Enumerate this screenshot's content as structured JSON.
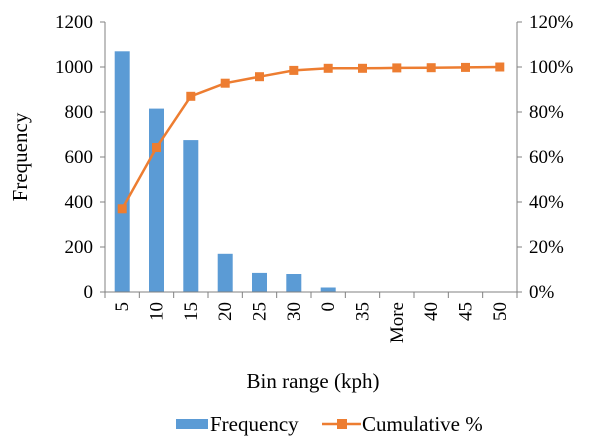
{
  "chart_data": {
    "type": "bar",
    "categories": [
      "5",
      "10",
      "15",
      "20",
      "25",
      "30",
      "0",
      "35",
      "More",
      "40",
      "45",
      "50"
    ],
    "series": [
      {
        "name": "Frequency",
        "type": "bar",
        "axis": "left",
        "color": "#5B9BD5",
        "values": [
          1070,
          815,
          675,
          170,
          85,
          80,
          20,
          0,
          0,
          0,
          0,
          0
        ]
      },
      {
        "name": "Cumulative %",
        "type": "line",
        "axis": "right",
        "color": "#ED7D31",
        "marker": "square",
        "values": [
          37.0,
          64.2,
          87.0,
          92.8,
          95.7,
          98.5,
          99.4,
          99.4,
          99.6,
          99.7,
          99.8,
          100.0
        ]
      }
    ],
    "xlabel": "Bin range (kph)",
    "ylabel": "Frequency",
    "ylim": [
      0,
      1200
    ],
    "y_ticks": [
      "0",
      "200",
      "400",
      "600",
      "800",
      "1000",
      "1200"
    ],
    "y2lim": [
      0,
      120
    ],
    "y2_ticks": [
      "0%",
      "20%",
      "40%",
      "60%",
      "80%",
      "100%",
      "120%"
    ],
    "grid": false,
    "legend_position": "bottom"
  }
}
